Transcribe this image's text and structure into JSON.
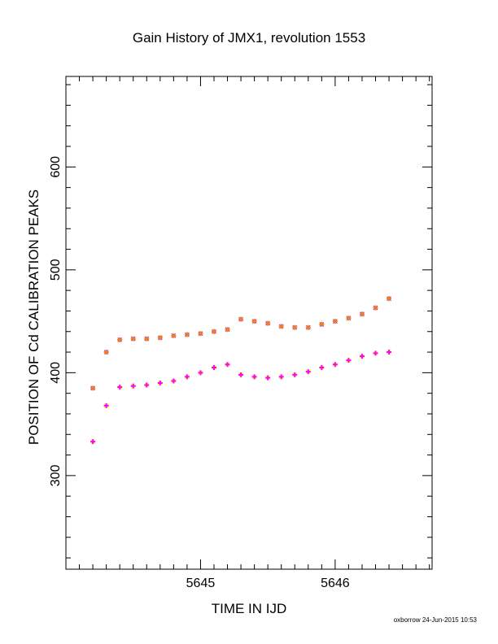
{
  "chart_data": {
    "type": "scatter",
    "title": "Gain History of JMX1, revolution 1553",
    "xlabel": "TIME IN IJD",
    "ylabel": "POSITION OF Cd CALIBRATION PEAKS",
    "xlim": [
      5644.0,
      5646.72
    ],
    "ylim": [
      209,
      688
    ],
    "xticks": [
      5645,
      5646
    ],
    "yticks": [
      300,
      400,
      500,
      600
    ],
    "grid": false,
    "series": [
      {
        "color": "#8a2be2",
        "marker": "x",
        "kind": "scatter",
        "x": [
          5644.2,
          5644.3,
          5644.4,
          5644.5,
          5644.6,
          5644.7,
          5644.8,
          5644.9,
          5645.0,
          5645.1,
          5645.2,
          5645.3,
          5645.4,
          5645.5,
          5645.6,
          5645.7,
          5645.8,
          5645.9,
          5646.0,
          5646.1,
          5646.2,
          5646.3,
          5646.4
        ],
        "y": [
          385,
          420,
          432,
          433,
          433,
          434,
          436,
          437,
          438,
          440,
          442,
          452,
          450,
          448,
          445,
          444,
          444,
          447,
          450,
          453,
          457,
          463,
          472
        ]
      },
      {
        "color": "#ff7f0e",
        "marker": "+",
        "kind": "fit",
        "x": [
          5644.2,
          5644.3,
          5644.4,
          5644.5,
          5644.6,
          5644.7,
          5644.8,
          5644.9,
          5645.0,
          5645.1,
          5645.2,
          5645.3,
          5645.4,
          5645.5,
          5645.6,
          5645.7,
          5645.8,
          5645.9,
          5646.0,
          5646.1,
          5646.2,
          5646.3,
          5646.4
        ],
        "y": [
          385,
          420,
          432,
          433,
          433,
          434,
          436,
          437,
          438,
          440,
          442,
          452,
          450,
          448,
          445,
          444,
          444,
          447,
          450,
          453,
          457,
          463,
          472
        ]
      },
      {
        "color": "#ffff00",
        "marker": "x",
        "kind": "scatter",
        "x": [
          5644.2,
          5644.3,
          5644.4,
          5644.5,
          5644.6,
          5644.7,
          5644.8,
          5644.9,
          5645.0,
          5645.1,
          5645.2,
          5645.3,
          5645.4,
          5645.5,
          5645.6,
          5645.7,
          5645.8,
          5645.9,
          5646.0,
          5646.1,
          5646.2,
          5646.3,
          5646.4
        ],
        "y": [
          333,
          368,
          386,
          387,
          388,
          390,
          392,
          396,
          400,
          405,
          408,
          398,
          396,
          395,
          396,
          398,
          401,
          405,
          408,
          412,
          416,
          419,
          420
        ]
      },
      {
        "color": "#ff00ff",
        "marker": "+",
        "kind": "fit",
        "x": [
          5644.2,
          5644.3,
          5644.4,
          5644.5,
          5644.6,
          5644.7,
          5644.8,
          5644.9,
          5645.0,
          5645.1,
          5645.2,
          5645.3,
          5645.4,
          5645.5,
          5645.6,
          5645.7,
          5645.8,
          5645.9,
          5646.0,
          5646.1,
          5646.2,
          5646.3,
          5646.4
        ],
        "y": [
          333,
          368,
          386,
          387,
          388,
          390,
          392,
          396,
          400,
          405,
          408,
          398,
          396,
          395,
          396,
          398,
          401,
          405,
          408,
          412,
          416,
          419,
          420
        ]
      }
    ]
  },
  "footer": "oxborrow 24-Jun-2015 10:53"
}
